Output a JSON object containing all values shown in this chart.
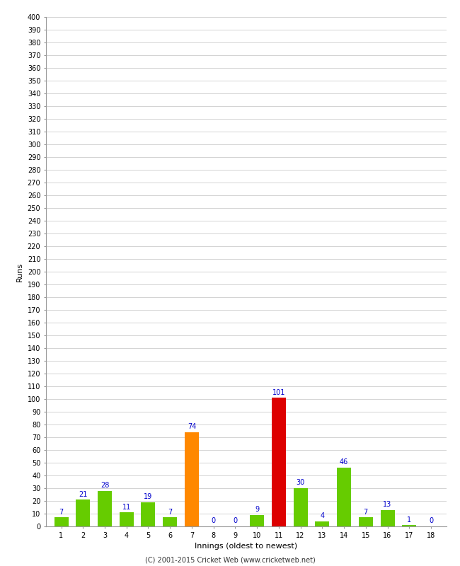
{
  "innings": [
    1,
    2,
    3,
    4,
    5,
    6,
    7,
    8,
    9,
    10,
    11,
    12,
    13,
    14,
    15,
    16,
    17,
    18
  ],
  "runs": [
    7,
    21,
    28,
    11,
    19,
    7,
    74,
    0,
    0,
    9,
    101,
    30,
    4,
    46,
    7,
    13,
    1,
    0
  ],
  "bar_colors": [
    "#66cc00",
    "#66cc00",
    "#66cc00",
    "#66cc00",
    "#66cc00",
    "#66cc00",
    "#ff8800",
    "#66cc00",
    "#66cc00",
    "#66cc00",
    "#dd0000",
    "#66cc00",
    "#66cc00",
    "#66cc00",
    "#66cc00",
    "#66cc00",
    "#66cc00",
    "#66cc00"
  ],
  "label_colors": [
    "#0000cc",
    "#0000cc",
    "#0000cc",
    "#0000cc",
    "#0000cc",
    "#0000cc",
    "#0000cc",
    "#0000cc",
    "#0000cc",
    "#0000cc",
    "#0000cc",
    "#0000cc",
    "#0000cc",
    "#0000cc",
    "#0000cc",
    "#0000cc",
    "#0000cc",
    "#0000cc"
  ],
  "xlabel": "Innings (oldest to newest)",
  "ylabel": "Runs",
  "ylim": [
    0,
    400
  ],
  "ytick_step": 10,
  "background_color": "#ffffff",
  "grid_color": "#cccccc",
  "footer": "(C) 2001-2015 Cricket Web (www.cricketweb.net)"
}
